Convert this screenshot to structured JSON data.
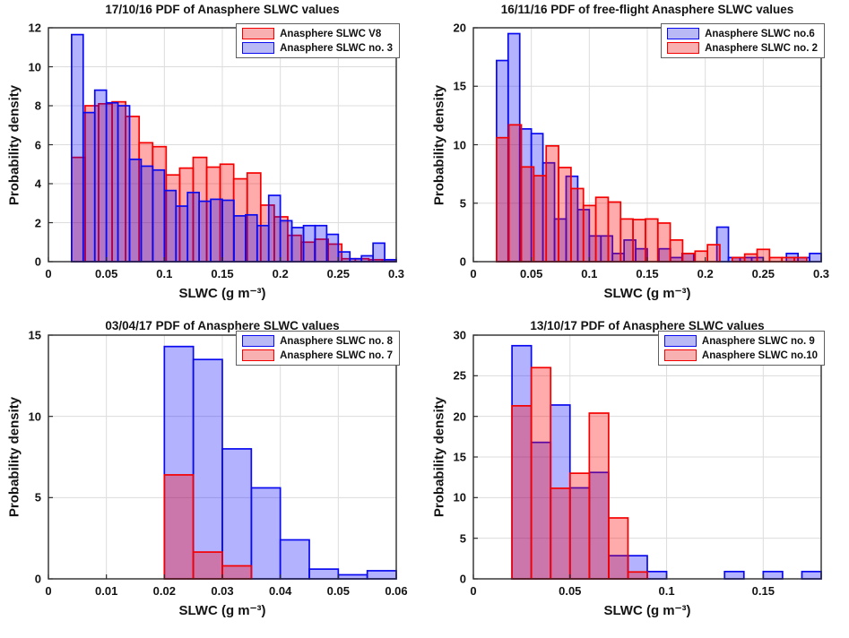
{
  "figure": {
    "background": "#ffffff",
    "grid_color": "#dcdcdc",
    "axis_color": "#2b2b2b",
    "text_color": "#141414"
  },
  "colors": {
    "blue": {
      "edge": "#0a0af0",
      "fill": "rgba(0,0,255,0.30)",
      "legend_fill": "#b9b9f6"
    },
    "red": {
      "edge": "#f50000",
      "fill": "rgba(255,0,0,0.33)",
      "legend_fill": "#f9b0b0"
    }
  },
  "chart_data": [
    {
      "type": "bar",
      "subtype": "overlaid-histograms",
      "title": "17/10/16 PDF of Anasphere SLWC values",
      "xlabel": "SLWC (g m⁻³)",
      "ylabel": "Probability density",
      "xlim": [
        0,
        0.3
      ],
      "ylim": [
        0,
        12
      ],
      "xticks": [
        0,
        0.05,
        0.1,
        0.15,
        0.2,
        0.25,
        0.3
      ],
      "yticks": [
        0,
        2,
        4,
        6,
        8,
        10,
        12
      ],
      "grid": true,
      "legend_position": "top-right",
      "legend": [
        {
          "label": "Anasphere SLWC V8",
          "color": "red"
        },
        {
          "label": "Anasphere SLWC no. 3",
          "color": "blue"
        }
      ],
      "series": [
        {
          "color": "red",
          "bin_start": 0.02,
          "bin_width": 0.01165,
          "values": [
            5.35,
            8.0,
            8.1,
            8.2,
            7.45,
            6.1,
            5.9,
            4.45,
            4.8,
            5.35,
            4.85,
            5.0,
            4.25,
            4.55,
            2.9,
            2.3,
            1.35,
            1.0,
            1.15,
            0.9,
            0.15,
            0.15,
            0.1,
            0.1
          ]
        },
        {
          "color": "blue",
          "bin_start": 0.02,
          "bin_width": 0.01,
          "values": [
            11.65,
            7.65,
            8.8,
            8.15,
            8.0,
            5.25,
            4.9,
            4.7,
            3.65,
            2.85,
            3.55,
            3.1,
            3.2,
            3.15,
            2.35,
            2.4,
            1.85,
            3.4,
            2.1,
            1.75,
            1.85,
            1.85,
            1.4,
            0.5,
            0.15,
            0.3,
            0.95,
            0.1
          ]
        }
      ]
    },
    {
      "type": "bar",
      "subtype": "overlaid-histograms",
      "title": "16/11/16 PDF of free-flight Anasphere SLWC values",
      "xlabel": "SLWC (g m⁻³)",
      "ylabel": "Probability density",
      "xlim": [
        0,
        0.3
      ],
      "ylim": [
        0,
        20
      ],
      "xticks": [
        0,
        0.05,
        0.1,
        0.15,
        0.2,
        0.25,
        0.3
      ],
      "yticks": [
        0,
        5,
        10,
        15,
        20
      ],
      "grid": true,
      "legend_position": "top-right",
      "legend": [
        {
          "label": "Anasphere SLWC no.6",
          "color": "blue"
        },
        {
          "label": "Anasphere SLWC no. 2",
          "color": "red"
        }
      ],
      "series": [
        {
          "color": "blue",
          "bin_start": 0.02,
          "bin_width": 0.01,
          "values": [
            17.2,
            19.5,
            11.35,
            10.95,
            8.45,
            3.65,
            7.3,
            4.45,
            2.2,
            2.2,
            0.7,
            1.85,
            1.1,
            0,
            1.1,
            0.35,
            0.7,
            0,
            0,
            2.95,
            0.35,
            0.35,
            0.35,
            0,
            0,
            0.7,
            0.35,
            0.7
          ]
        },
        {
          "color": "red",
          "bin_start": 0.02,
          "bin_width": 0.0107,
          "values": [
            10.6,
            11.7,
            8.1,
            7.35,
            9.9,
            8.05,
            6.25,
            4.8,
            5.5,
            5.1,
            3.65,
            3.6,
            3.65,
            3.3,
            1.85,
            0.7,
            0.9,
            1.45,
            0,
            0.35,
            0.65,
            1.05,
            0.35,
            0.35,
            0.35
          ]
        }
      ]
    },
    {
      "type": "bar",
      "subtype": "overlaid-histograms",
      "title": "03/04/17 PDF of Anasphere SLWC values",
      "xlabel": "SLWC (g m⁻³)",
      "ylabel": "Probability density",
      "xlim": [
        0,
        0.06
      ],
      "ylim": [
        0,
        15
      ],
      "xticks": [
        0,
        0.01,
        0.02,
        0.03,
        0.04,
        0.05,
        0.06
      ],
      "yticks": [
        0,
        5,
        10,
        15
      ],
      "grid": true,
      "legend_position": "top-right",
      "legend": [
        {
          "label": "Anasphere SLWC no. 8",
          "color": "blue"
        },
        {
          "label": "Anasphere SLWC no. 7",
          "color": "red"
        }
      ],
      "series": [
        {
          "color": "blue",
          "bin_start": 0.02,
          "bin_width": 0.005,
          "values": [
            14.3,
            13.5,
            8.0,
            5.6,
            2.4,
            0.6,
            0.25,
            0.5
          ]
        },
        {
          "color": "red",
          "bin_start": 0.02,
          "bin_width": 0.005,
          "values": [
            6.4,
            1.65,
            0.8
          ]
        }
      ]
    },
    {
      "type": "bar",
      "subtype": "overlaid-histograms",
      "title": "13/10/17 PDF of Anasphere SLWC values",
      "xlabel": "SLWC (g m⁻³)",
      "ylabel": "Probability density",
      "xlim": [
        0,
        0.18
      ],
      "ylim": [
        0,
        30
      ],
      "xticks": [
        0,
        0.05,
        0.1,
        0.15
      ],
      "yticks": [
        0,
        5,
        10,
        15,
        20,
        25,
        30
      ],
      "grid": true,
      "legend_position": "top-right",
      "legend": [
        {
          "label": "Anasphere SLWC no. 9",
          "color": "blue"
        },
        {
          "label": "Anasphere SLWC no.10",
          "color": "red"
        }
      ],
      "series": [
        {
          "color": "blue",
          "bin_start": 0.02,
          "bin_width": 0.01,
          "values": [
            28.7,
            16.8,
            21.4,
            11.2,
            13.1,
            2.85,
            2.85,
            0.9,
            0,
            0,
            0,
            0.9,
            0,
            0.9,
            0,
            0.9
          ]
        },
        {
          "color": "red",
          "bin_start": 0.02,
          "bin_width": 0.01,
          "values": [
            21.3,
            26.0,
            11.15,
            13.0,
            20.4,
            7.5,
            0.85
          ]
        }
      ]
    }
  ]
}
